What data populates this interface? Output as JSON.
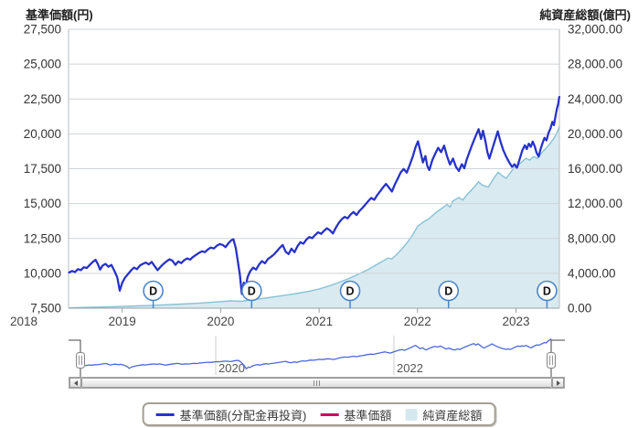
{
  "chart_data": {
    "type": "line+area (time-series fund chart)",
    "x_range": [
      2018.46,
      2023.44
    ],
    "grid": true,
    "legend_position": "bottom",
    "x_ticks": [
      {
        "label": "2018",
        "year": 2018
      },
      {
        "label": "2019",
        "year": 2019
      },
      {
        "label": "2020",
        "year": 2020
      },
      {
        "label": "2021",
        "year": 2021
      },
      {
        "label": "2022",
        "year": 2022
      },
      {
        "label": "2023",
        "year": 2023
      }
    ],
    "left_axis": {
      "title": "基準価額(円)",
      "min": 7500,
      "max": 27500,
      "tick_step": 2500,
      "tick_values": [
        7500,
        10000,
        12500,
        15000,
        17500,
        20000,
        22500,
        25000,
        27500
      ],
      "tick_labels": [
        "7,500",
        "10,000",
        "12,500",
        "15,000",
        "17,500",
        "20,000",
        "22,500",
        "25,000",
        "27,500"
      ]
    },
    "right_axis": {
      "title": "純資産総額(億円)",
      "min": 0,
      "max": 32000,
      "tick_step": 4000,
      "tick_values": [
        0,
        4000,
        8000,
        12000,
        16000,
        20000,
        24000,
        28000,
        32000
      ],
      "tick_labels": [
        "0.00",
        "4,000.00",
        "8,000.00",
        "12,000.00",
        "16,000.00",
        "20,000.00",
        "24,000.00",
        "28,000.00",
        "32,000.00"
      ]
    },
    "series": [
      {
        "name": "基準価額(分配金再投資)",
        "type": "line",
        "axis": "left",
        "color": "#2334cc",
        "data_key": "nav"
      },
      {
        "name": "基準価額",
        "type": "line",
        "axis": "left",
        "color": "#cc0662",
        "data_key": "nav"
      },
      {
        "name": "純資産総額",
        "type": "area",
        "axis": "right",
        "color": "#d9eaf1",
        "line_color": "#86c2d7",
        "data_key": "aum"
      }
    ],
    "event_markers": {
      "label": "D",
      "dates": [
        2019.315,
        2020.315,
        2021.315,
        2022.315,
        2023.315
      ]
    },
    "nav": [
      [
        2018.46,
        10060
      ],
      [
        2018.49,
        10170
      ],
      [
        2018.52,
        10090
      ],
      [
        2018.55,
        10300
      ],
      [
        2018.58,
        10230
      ],
      [
        2018.61,
        10440
      ],
      [
        2018.64,
        10380
      ],
      [
        2018.67,
        10600
      ],
      [
        2018.7,
        10810
      ],
      [
        2018.73,
        10970
      ],
      [
        2018.755,
        10630
      ],
      [
        2018.775,
        10270
      ],
      [
        2018.8,
        10550
      ],
      [
        2018.83,
        10680
      ],
      [
        2018.86,
        10470
      ],
      [
        2018.89,
        10600
      ],
      [
        2018.92,
        10180
      ],
      [
        2018.95,
        9710
      ],
      [
        2018.975,
        8760
      ],
      [
        2019.0,
        9320
      ],
      [
        2019.03,
        9700
      ],
      [
        2019.06,
        9960
      ],
      [
        2019.09,
        10210
      ],
      [
        2019.12,
        10410
      ],
      [
        2019.15,
        10300
      ],
      [
        2019.18,
        10560
      ],
      [
        2019.21,
        10680
      ],
      [
        2019.24,
        10770
      ],
      [
        2019.27,
        10640
      ],
      [
        2019.3,
        10820
      ],
      [
        2019.33,
        10510
      ],
      [
        2019.36,
        10230
      ],
      [
        2019.39,
        10470
      ],
      [
        2019.42,
        10680
      ],
      [
        2019.45,
        10860
      ],
      [
        2019.48,
        11010
      ],
      [
        2019.51,
        10910
      ],
      [
        2019.54,
        10610
      ],
      [
        2019.57,
        10850
      ],
      [
        2019.6,
        10730
      ],
      [
        2019.63,
        10950
      ],
      [
        2019.66,
        11070
      ],
      [
        2019.69,
        10980
      ],
      [
        2019.72,
        11180
      ],
      [
        2019.75,
        11320
      ],
      [
        2019.78,
        11470
      ],
      [
        2019.81,
        11580
      ],
      [
        2019.84,
        11520
      ],
      [
        2019.87,
        11710
      ],
      [
        2019.9,
        11850
      ],
      [
        2019.93,
        11780
      ],
      [
        2019.96,
        11970
      ],
      [
        2019.99,
        12100
      ],
      [
        2020.02,
        12040
      ],
      [
        2020.05,
        11880
      ],
      [
        2020.08,
        12170
      ],
      [
        2020.11,
        12380
      ],
      [
        2020.13,
        12440
      ],
      [
        2020.155,
        11770
      ],
      [
        2020.175,
        10860
      ],
      [
        2020.195,
        9910
      ],
      [
        2020.215,
        8520
      ],
      [
        2020.235,
        9330
      ],
      [
        2020.255,
        9110
      ],
      [
        2020.275,
        9750
      ],
      [
        2020.3,
        10140
      ],
      [
        2020.33,
        10410
      ],
      [
        2020.36,
        10270
      ],
      [
        2020.39,
        10630
      ],
      [
        2020.42,
        10880
      ],
      [
        2020.45,
        10720
      ],
      [
        2020.48,
        11030
      ],
      [
        2020.51,
        11170
      ],
      [
        2020.54,
        11350
      ],
      [
        2020.57,
        11580
      ],
      [
        2020.6,
        11820
      ],
      [
        2020.63,
        12030
      ],
      [
        2020.66,
        11550
      ],
      [
        2020.69,
        11380
      ],
      [
        2020.72,
        11770
      ],
      [
        2020.75,
        11510
      ],
      [
        2020.78,
        11940
      ],
      [
        2020.81,
        12230
      ],
      [
        2020.84,
        12120
      ],
      [
        2020.87,
        12410
      ],
      [
        2020.9,
        12600
      ],
      [
        2020.93,
        12520
      ],
      [
        2020.96,
        12750
      ],
      [
        2020.99,
        12940
      ],
      [
        2021.02,
        12830
      ],
      [
        2021.05,
        13050
      ],
      [
        2021.08,
        13230
      ],
      [
        2021.11,
        13090
      ],
      [
        2021.14,
        12860
      ],
      [
        2021.17,
        13270
      ],
      [
        2021.2,
        13610
      ],
      [
        2021.23,
        13880
      ],
      [
        2021.26,
        14050
      ],
      [
        2021.29,
        13940
      ],
      [
        2021.32,
        14220
      ],
      [
        2021.35,
        14400
      ],
      [
        2021.38,
        14180
      ],
      [
        2021.41,
        14480
      ],
      [
        2021.44,
        14690
      ],
      [
        2021.47,
        14930
      ],
      [
        2021.5,
        15180
      ],
      [
        2021.53,
        15410
      ],
      [
        2021.56,
        15270
      ],
      [
        2021.59,
        15600
      ],
      [
        2021.62,
        15880
      ],
      [
        2021.65,
        16170
      ],
      [
        2021.68,
        16410
      ],
      [
        2021.71,
        16140
      ],
      [
        2021.74,
        15870
      ],
      [
        2021.77,
        16380
      ],
      [
        2021.8,
        16810
      ],
      [
        2021.83,
        17250
      ],
      [
        2021.86,
        17480
      ],
      [
        2021.89,
        17220
      ],
      [
        2021.92,
        17760
      ],
      [
        2021.95,
        18330
      ],
      [
        2021.98,
        19050
      ],
      [
        2022.005,
        19470
      ],
      [
        2022.03,
        18720
      ],
      [
        2022.055,
        17950
      ],
      [
        2022.08,
        18410
      ],
      [
        2022.1,
        17680
      ],
      [
        2022.12,
        17410
      ],
      [
        2022.15,
        18120
      ],
      [
        2022.18,
        18580
      ],
      [
        2022.21,
        19000
      ],
      [
        2022.24,
        18690
      ],
      [
        2022.27,
        19150
      ],
      [
        2022.3,
        18390
      ],
      [
        2022.33,
        17800
      ],
      [
        2022.36,
        18230
      ],
      [
        2022.39,
        17640
      ],
      [
        2022.42,
        17340
      ],
      [
        2022.45,
        17830
      ],
      [
        2022.475,
        17530
      ],
      [
        2022.5,
        18180
      ],
      [
        2022.53,
        18750
      ],
      [
        2022.56,
        19310
      ],
      [
        2022.59,
        19830
      ],
      [
        2022.62,
        20330
      ],
      [
        2022.645,
        19640
      ],
      [
        2022.665,
        20230
      ],
      [
        2022.69,
        19460
      ],
      [
        2022.71,
        18670
      ],
      [
        2022.73,
        18230
      ],
      [
        2022.76,
        18940
      ],
      [
        2022.79,
        19610
      ],
      [
        2022.815,
        20180
      ],
      [
        2022.84,
        19500
      ],
      [
        2022.87,
        18850
      ],
      [
        2022.9,
        18380
      ],
      [
        2022.93,
        17970
      ],
      [
        2022.96,
        17630
      ],
      [
        2022.985,
        17820
      ],
      [
        2023.01,
        17580
      ],
      [
        2023.04,
        18250
      ],
      [
        2023.065,
        18830
      ],
      [
        2023.09,
        19180
      ],
      [
        2023.11,
        18910
      ],
      [
        2023.13,
        19300
      ],
      [
        2023.15,
        19070
      ],
      [
        2023.17,
        19450
      ],
      [
        2023.19,
        19110
      ],
      [
        2023.21,
        18630
      ],
      [
        2023.23,
        18380
      ],
      [
        2023.25,
        18900
      ],
      [
        2023.27,
        19340
      ],
      [
        2023.29,
        19710
      ],
      [
        2023.31,
        19530
      ],
      [
        2023.33,
        20050
      ],
      [
        2023.35,
        20380
      ],
      [
        2023.37,
        20860
      ],
      [
        2023.385,
        20630
      ],
      [
        2023.4,
        21220
      ],
      [
        2023.415,
        21770
      ],
      [
        2023.43,
        22180
      ],
      [
        2023.44,
        22650
      ]
    ],
    "aum": [
      [
        2018.46,
        30
      ],
      [
        2018.6,
        80
      ],
      [
        2018.75,
        130
      ],
      [
        2018.9,
        170
      ],
      [
        2019.0,
        200
      ],
      [
        2019.15,
        260
      ],
      [
        2019.3,
        330
      ],
      [
        2019.45,
        400
      ],
      [
        2019.6,
        470
      ],
      [
        2019.75,
        560
      ],
      [
        2019.9,
        670
      ],
      [
        2020.0,
        760
      ],
      [
        2020.1,
        840
      ],
      [
        2020.21,
        790
      ],
      [
        2020.3,
        950
      ],
      [
        2020.45,
        1150
      ],
      [
        2020.6,
        1400
      ],
      [
        2020.75,
        1650
      ],
      [
        2020.9,
        1950
      ],
      [
        2021.0,
        2200
      ],
      [
        2021.1,
        2550
      ],
      [
        2021.2,
        2950
      ],
      [
        2021.3,
        3400
      ],
      [
        2021.4,
        3900
      ],
      [
        2021.5,
        4450
      ],
      [
        2021.6,
        5100
      ],
      [
        2021.7,
        5750
      ],
      [
        2021.74,
        5650
      ],
      [
        2021.8,
        6300
      ],
      [
        2021.85,
        6900
      ],
      [
        2021.9,
        7600
      ],
      [
        2021.95,
        8400
      ],
      [
        2022.0,
        9380
      ],
      [
        2022.06,
        9900
      ],
      [
        2022.12,
        10300
      ],
      [
        2022.18,
        10900
      ],
      [
        2022.24,
        11400
      ],
      [
        2022.3,
        11900
      ],
      [
        2022.33,
        11600
      ],
      [
        2022.36,
        12300
      ],
      [
        2022.42,
        12700
      ],
      [
        2022.46,
        12400
      ],
      [
        2022.5,
        13000
      ],
      [
        2022.56,
        13700
      ],
      [
        2022.62,
        14500
      ],
      [
        2022.66,
        14100
      ],
      [
        2022.72,
        13900
      ],
      [
        2022.78,
        15000
      ],
      [
        2022.82,
        15600
      ],
      [
        2022.86,
        15200
      ],
      [
        2022.9,
        14900
      ],
      [
        2022.94,
        15500
      ],
      [
        2022.98,
        16100
      ],
      [
        2023.02,
        16400
      ],
      [
        2023.06,
        16800
      ],
      [
        2023.1,
        17200
      ],
      [
        2023.14,
        17000
      ],
      [
        2023.18,
        17400
      ],
      [
        2023.22,
        17200
      ],
      [
        2023.26,
        17800
      ],
      [
        2023.3,
        18300
      ],
      [
        2023.34,
        18800
      ],
      [
        2023.38,
        19400
      ],
      [
        2023.41,
        20000
      ],
      [
        2023.43,
        20500
      ],
      [
        2023.44,
        20900
      ]
    ]
  },
  "navigator": {
    "tick_labels": [
      "2020",
      "2022"
    ],
    "line_color": "#4d68dd"
  },
  "legend": {
    "items": [
      {
        "label": "基準価額(分配金再投資)",
        "swatch": "line",
        "color": "#2334cc"
      },
      {
        "label": "基準価額",
        "swatch": "line",
        "color": "#cc0662"
      },
      {
        "label": "純資産総額",
        "swatch": "area",
        "color": "#d6e8ef"
      }
    ]
  }
}
